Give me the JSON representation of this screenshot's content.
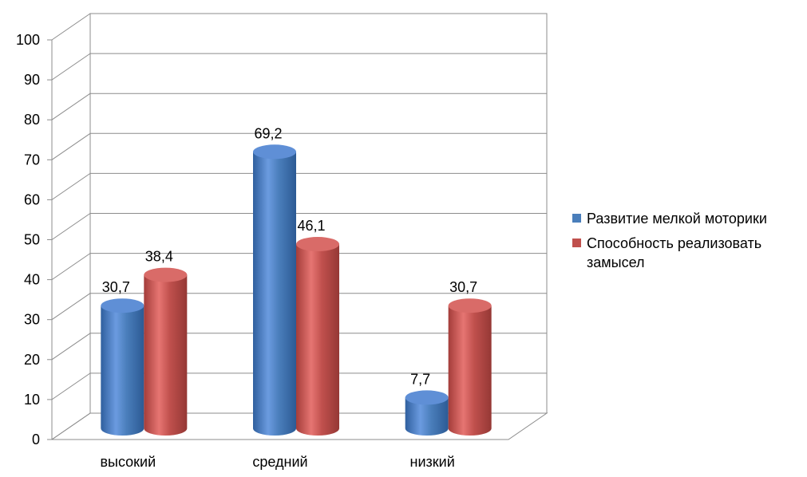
{
  "chart_data": {
    "type": "bar",
    "title": "",
    "xlabel": "",
    "ylabel": "",
    "categories": [
      "высокий",
      "средний",
      "низкий"
    ],
    "series": [
      {
        "name": "Развитие мелкой моторики",
        "values": [
          30.7,
          69.2,
          7.7
        ],
        "labels": [
          "30,7",
          "69,2",
          "7,7"
        ],
        "color": "#4a7ebb"
      },
      {
        "name": "Способность реализовать замысел",
        "values": [
          38.4,
          46.1,
          30.7
        ],
        "labels": [
          "38,4",
          "46,1",
          "30,7"
        ],
        "color": "#c0504d"
      }
    ],
    "ylim": [
      0,
      100
    ],
    "yticks": [
      0,
      10,
      20,
      30,
      40,
      50,
      60,
      70,
      80,
      90,
      100
    ],
    "grid": true,
    "legend_position": "right",
    "style": "3d-cylinder"
  },
  "legend": {
    "items": [
      {
        "line1": "Развитие мелкой моторики",
        "line2": ""
      },
      {
        "line1": "Способность реализовать",
        "line2": "замысел"
      }
    ]
  }
}
